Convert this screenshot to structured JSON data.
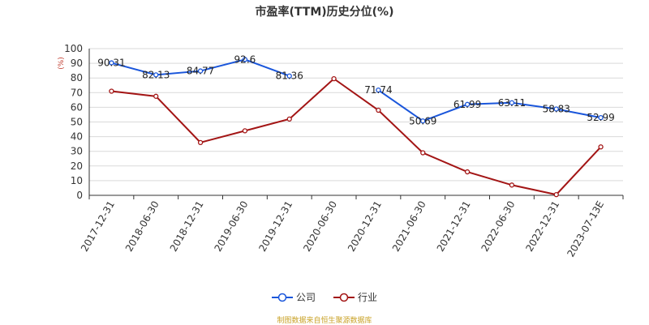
{
  "chart_data": {
    "type": "line",
    "title": "市盈率(TTM)历史分位(%)",
    "ylabel": "(%)",
    "ylim": [
      0,
      100
    ],
    "yticks": [
      0,
      10,
      20,
      30,
      40,
      50,
      60,
      70,
      80,
      90,
      100
    ],
    "grid": true,
    "legend_position": "bottom",
    "categories": [
      "2017-12-31",
      "2018-06-30",
      "2018-12-31",
      "2019-06-30",
      "2019-12-31",
      "2020-06-30",
      "2020-12-31",
      "2021-06-30",
      "2021-12-31",
      "2022-06-30",
      "2022-12-31",
      "2023-07-13E"
    ],
    "series": [
      {
        "name": "公司",
        "color": "#1a56db",
        "values": [
          90.31,
          82.13,
          84.77,
          92.6,
          81.36,
          null,
          71.74,
          50.69,
          61.99,
          63.11,
          58.83,
          52.99
        ],
        "labels": [
          "90.31",
          "82.13",
          "84.77",
          "92.6",
          "81.36",
          "",
          "71.74",
          "50.69",
          "61.99",
          "63.11",
          "58.83",
          "52.99"
        ]
      },
      {
        "name": "行业",
        "color": "#a31515",
        "values": [
          71,
          67.5,
          36,
          44,
          52,
          79.5,
          58,
          29,
          16,
          7,
          0.5,
          33
        ]
      }
    ]
  },
  "footer": "制图数据来自恒生聚源数据库"
}
